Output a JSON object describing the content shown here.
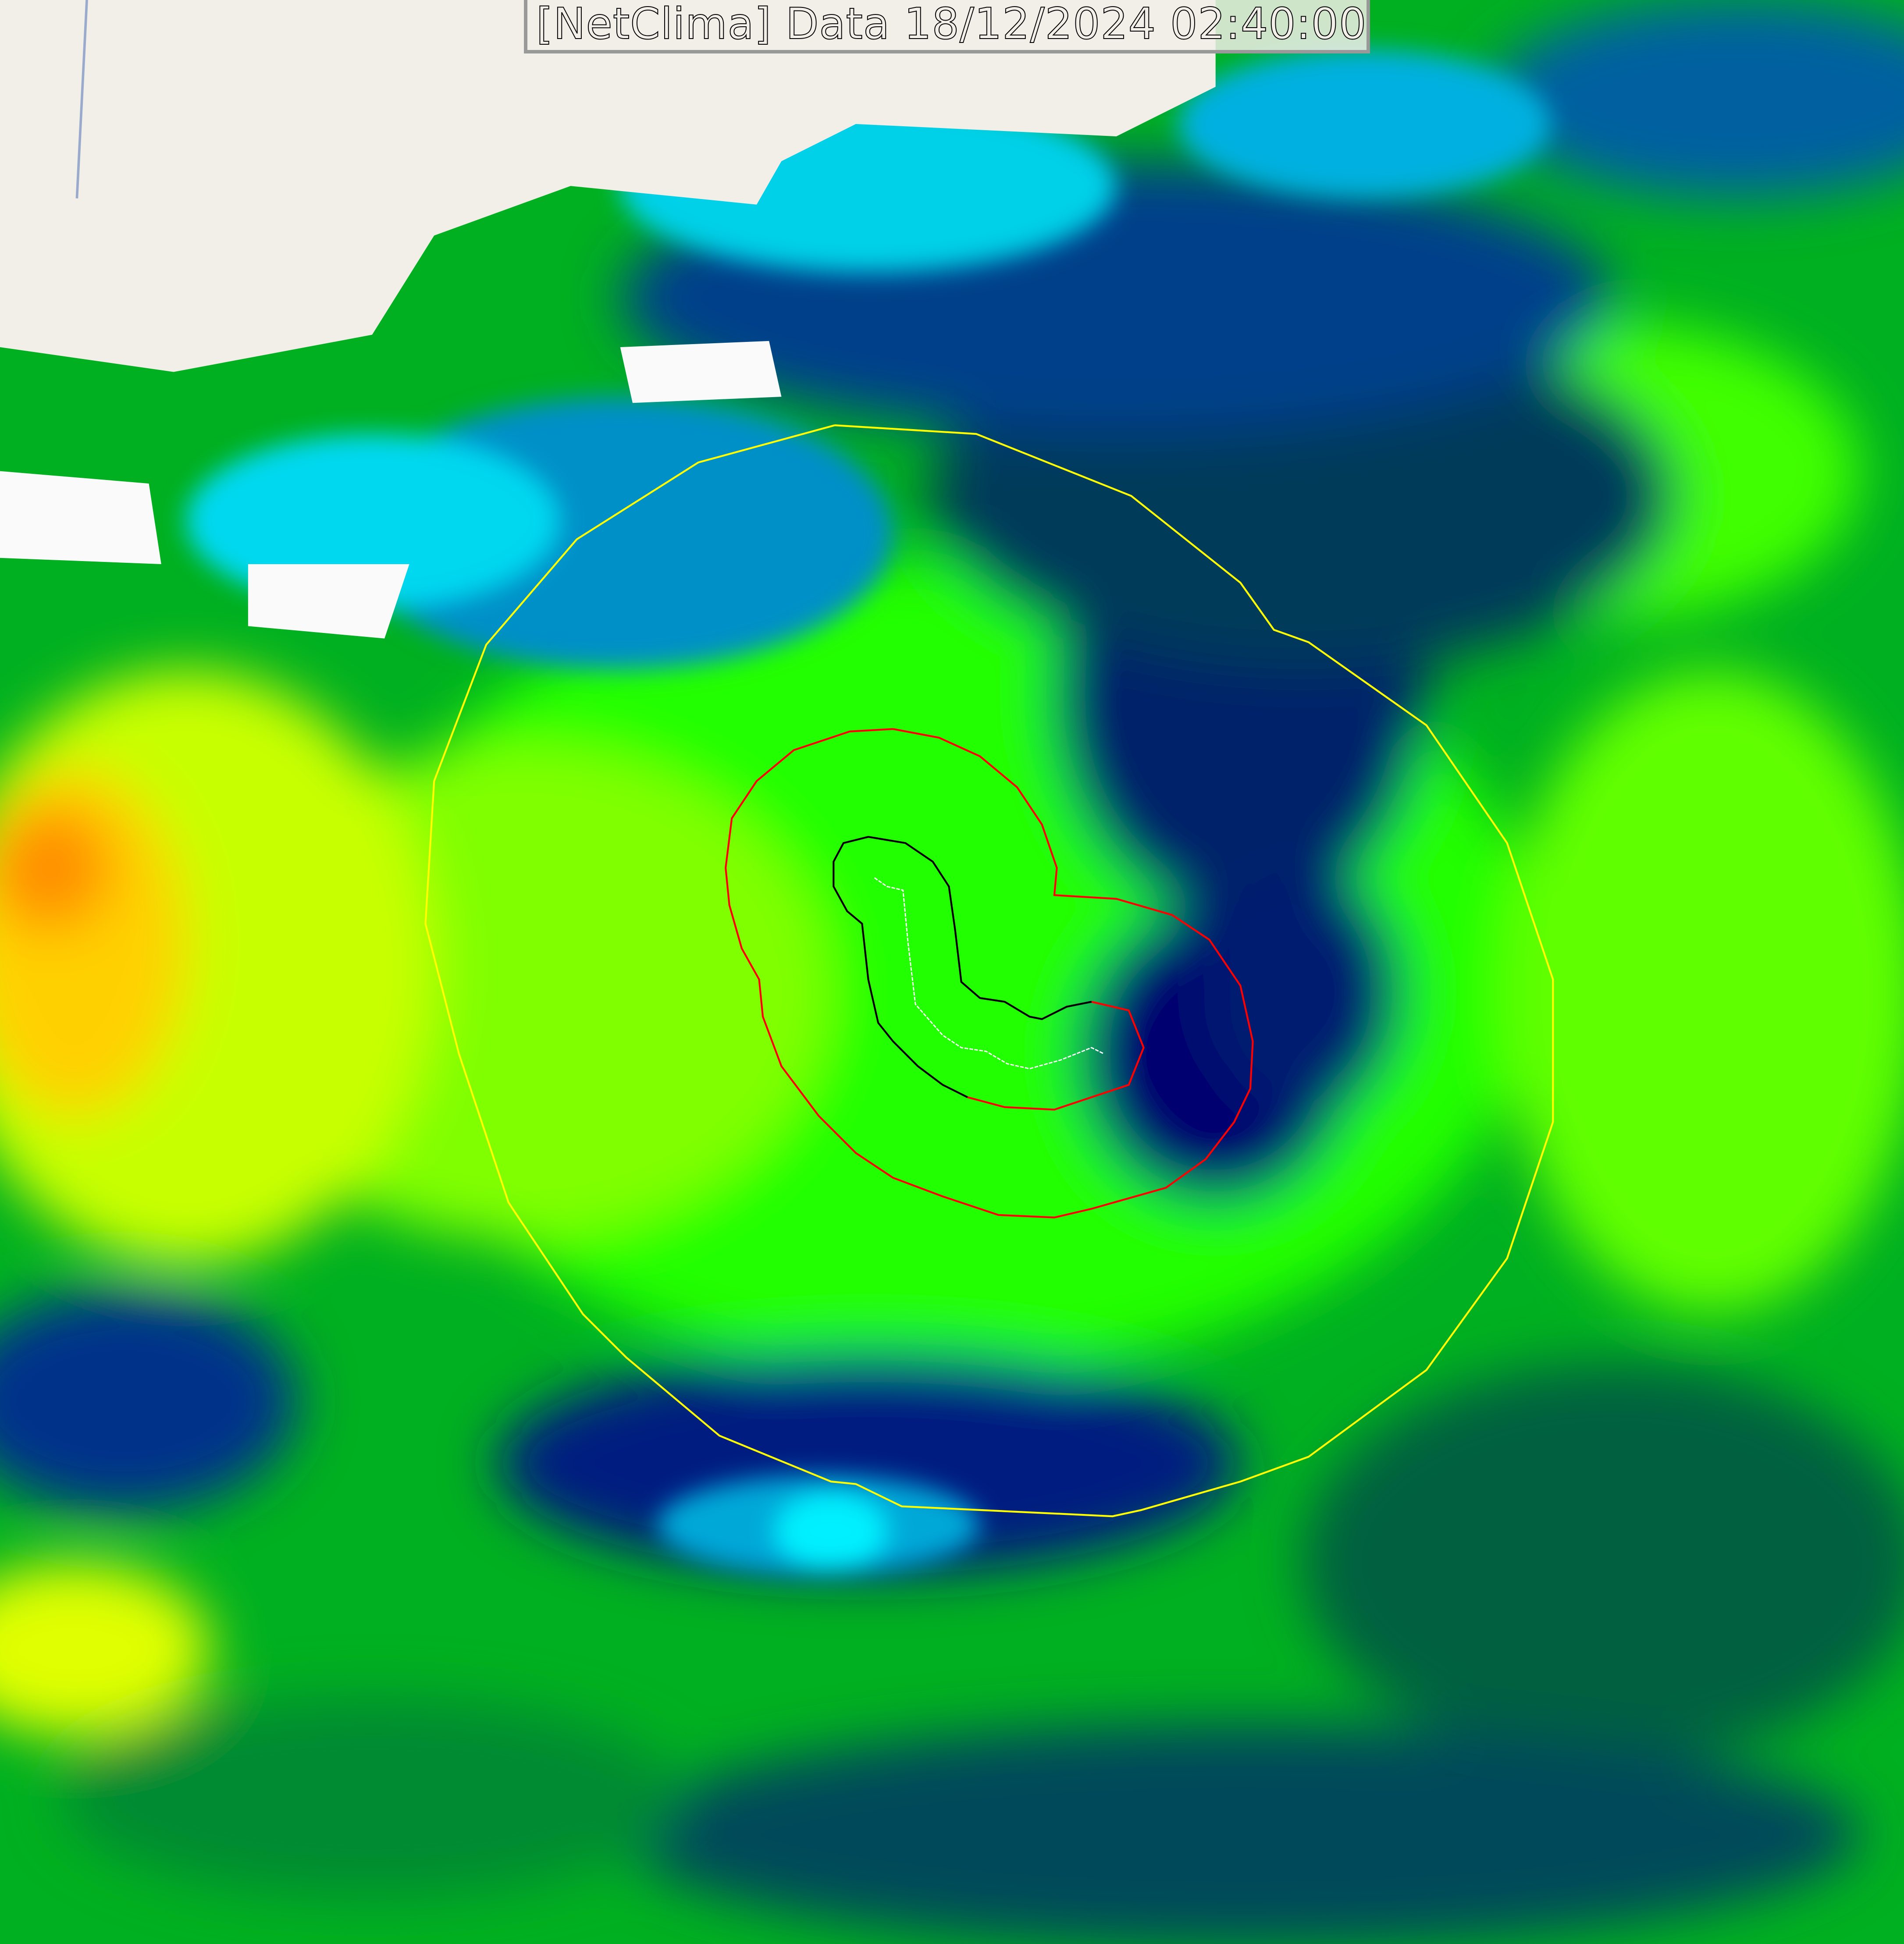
{
  "title": "[NetClima] Data 18/12/2024 02:40:00",
  "colors": {
    "contour_outer": "#ffff00",
    "contour_middle": "#ff0000",
    "contour_inner": "#000000",
    "track": "#ffffff",
    "palette": [
      "#000070",
      "#003a8a",
      "#0078c0",
      "#00e0ff",
      "#006a3a",
      "#00c000",
      "#00ff00",
      "#80ff00",
      "#ffff00",
      "#ff8000"
    ]
  },
  "icons": {
    "basemap": "basemap-land"
  }
}
